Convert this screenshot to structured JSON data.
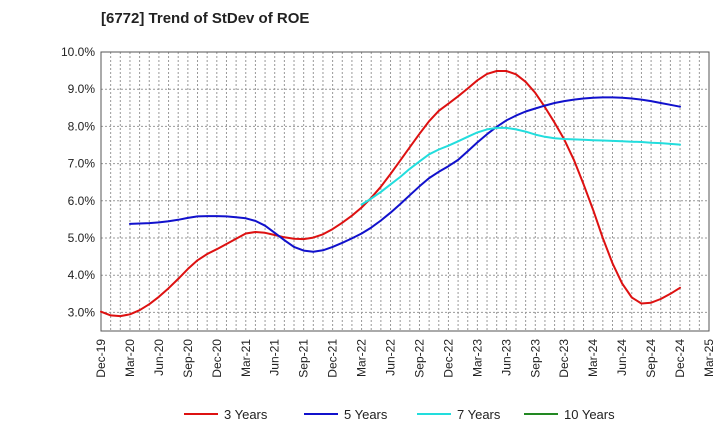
{
  "chart_data": {
    "type": "line",
    "title": "[6772]  Trend of StDev of ROE",
    "xlabel": "",
    "ylabel": "",
    "y_unit": "%",
    "ylim": [
      2.5,
      10.0
    ],
    "y_ticks": [
      3.0,
      4.0,
      5.0,
      6.0,
      7.0,
      8.0,
      9.0,
      10.0
    ],
    "y_tick_labels": [
      "3.0%",
      "4.0%",
      "5.0%",
      "6.0%",
      "7.0%",
      "8.0%",
      "9.0%",
      "10.0%"
    ],
    "x_tick_labels": [
      "Dec-19",
      "Mar-20",
      "Jun-20",
      "Sep-20",
      "Dec-20",
      "Mar-21",
      "Jun-21",
      "Sep-21",
      "Dec-21",
      "Mar-22",
      "Jun-22",
      "Sep-22",
      "Dec-22",
      "Mar-23",
      "Jun-23",
      "Sep-23",
      "Dec-23",
      "Mar-24",
      "Jun-24",
      "Sep-24",
      "Dec-24",
      "Mar-25"
    ],
    "grid": true,
    "legend_position": "bottom",
    "series": [
      {
        "name": "3 Years",
        "color": "#dd1111",
        "x": [
          "Dec-19",
          "Jan-20",
          "Feb-20",
          "Mar-20",
          "Apr-20",
          "May-20",
          "Jun-20",
          "Jul-20",
          "Aug-20",
          "Sep-20",
          "Oct-20",
          "Nov-20",
          "Dec-20",
          "Jan-21",
          "Feb-21",
          "Mar-21",
          "Apr-21",
          "May-21",
          "Jun-21",
          "Jul-21",
          "Aug-21",
          "Sep-21",
          "Oct-21",
          "Nov-21",
          "Dec-21",
          "Jan-22",
          "Feb-22",
          "Mar-22",
          "Apr-22",
          "May-22",
          "Jun-22",
          "Jul-22",
          "Aug-22",
          "Sep-22",
          "Oct-22",
          "Nov-22",
          "Dec-22",
          "Jan-23",
          "Feb-23",
          "Mar-23",
          "Apr-23",
          "May-23",
          "Jun-23",
          "Jul-23",
          "Aug-23",
          "Sep-23",
          "Oct-23",
          "Nov-23",
          "Dec-23",
          "Jan-24",
          "Feb-24",
          "Mar-24",
          "Apr-24",
          "May-24",
          "Jun-24",
          "Jul-24",
          "Aug-24",
          "Sep-24",
          "Oct-24",
          "Nov-24",
          "Dec-24"
        ],
        "values": [
          3.02,
          2.92,
          2.9,
          2.95,
          3.06,
          3.22,
          3.42,
          3.65,
          3.9,
          4.17,
          4.4,
          4.57,
          4.7,
          4.84,
          4.98,
          5.12,
          5.16,
          5.14,
          5.08,
          5.02,
          4.98,
          4.97,
          5.01,
          5.1,
          5.24,
          5.41,
          5.6,
          5.82,
          6.08,
          6.38,
          6.72,
          7.08,
          7.44,
          7.8,
          8.14,
          8.42,
          8.61,
          8.81,
          9.02,
          9.24,
          9.41,
          9.49,
          9.49,
          9.4,
          9.2,
          8.9,
          8.52,
          8.1,
          7.65,
          7.1,
          6.45,
          5.75,
          5.0,
          4.32,
          3.78,
          3.4,
          3.24,
          3.26,
          3.36,
          3.5,
          3.66
        ]
      },
      {
        "name": "5 Years",
        "color": "#1111cc",
        "x": [
          "Mar-20",
          "Apr-20",
          "May-20",
          "Jun-20",
          "Jul-20",
          "Aug-20",
          "Sep-20",
          "Oct-20",
          "Nov-20",
          "Dec-20",
          "Jan-21",
          "Feb-21",
          "Mar-21",
          "Apr-21",
          "May-21",
          "Jun-21",
          "Jul-21",
          "Aug-21",
          "Sep-21",
          "Oct-21",
          "Nov-21",
          "Dec-21",
          "Jan-22",
          "Feb-22",
          "Mar-22",
          "Apr-22",
          "May-22",
          "Jun-22",
          "Jul-22",
          "Aug-22",
          "Sep-22",
          "Oct-22",
          "Nov-22",
          "Dec-22",
          "Jan-23",
          "Feb-23",
          "Mar-23",
          "Apr-23",
          "May-23",
          "Jun-23",
          "Jul-23",
          "Aug-23",
          "Sep-23",
          "Oct-23",
          "Nov-23",
          "Dec-23",
          "Jan-24",
          "Feb-24",
          "Mar-24",
          "Apr-24",
          "May-24",
          "Jun-24",
          "Jul-24",
          "Aug-24",
          "Sep-24",
          "Oct-24",
          "Nov-24",
          "Dec-24"
        ],
        "values": [
          5.38,
          5.39,
          5.4,
          5.42,
          5.45,
          5.49,
          5.54,
          5.58,
          5.59,
          5.59,
          5.58,
          5.56,
          5.53,
          5.46,
          5.33,
          5.14,
          4.94,
          4.76,
          4.66,
          4.63,
          4.67,
          4.76,
          4.87,
          4.99,
          5.12,
          5.28,
          5.47,
          5.68,
          5.91,
          6.15,
          6.39,
          6.61,
          6.78,
          6.93,
          7.1,
          7.33,
          7.57,
          7.79,
          7.99,
          8.16,
          8.29,
          8.4,
          8.48,
          8.56,
          8.63,
          8.68,
          8.72,
          8.75,
          8.77,
          8.78,
          8.78,
          8.77,
          8.75,
          8.72,
          8.68,
          8.63,
          8.58,
          8.53
        ]
      },
      {
        "name": "7 Years",
        "color": "#22dddd",
        "x": [
          "Mar-22",
          "Apr-22",
          "May-22",
          "Jun-22",
          "Jul-22",
          "Aug-22",
          "Sep-22",
          "Oct-22",
          "Nov-22",
          "Dec-22",
          "Jan-23",
          "Feb-23",
          "Mar-23",
          "Apr-23",
          "May-23",
          "Jun-23",
          "Jul-23",
          "Aug-23",
          "Sep-23",
          "Oct-23",
          "Nov-23",
          "Dec-23",
          "Jan-24",
          "Feb-24",
          "Mar-24",
          "Apr-24",
          "May-24",
          "Jun-24",
          "Jul-24",
          "Aug-24",
          "Sep-24",
          "Oct-24",
          "Nov-24",
          "Dec-24"
        ],
        "values": [
          5.9,
          6.06,
          6.24,
          6.44,
          6.64,
          6.86,
          7.06,
          7.25,
          7.38,
          7.48,
          7.6,
          7.72,
          7.84,
          7.92,
          7.96,
          7.96,
          7.92,
          7.86,
          7.78,
          7.72,
          7.68,
          7.66,
          7.65,
          7.64,
          7.63,
          7.62,
          7.61,
          7.6,
          7.59,
          7.58,
          7.56,
          7.55,
          7.53,
          7.51
        ]
      },
      {
        "name": "10 Years",
        "color": "#228822",
        "x": [],
        "values": []
      }
    ]
  }
}
